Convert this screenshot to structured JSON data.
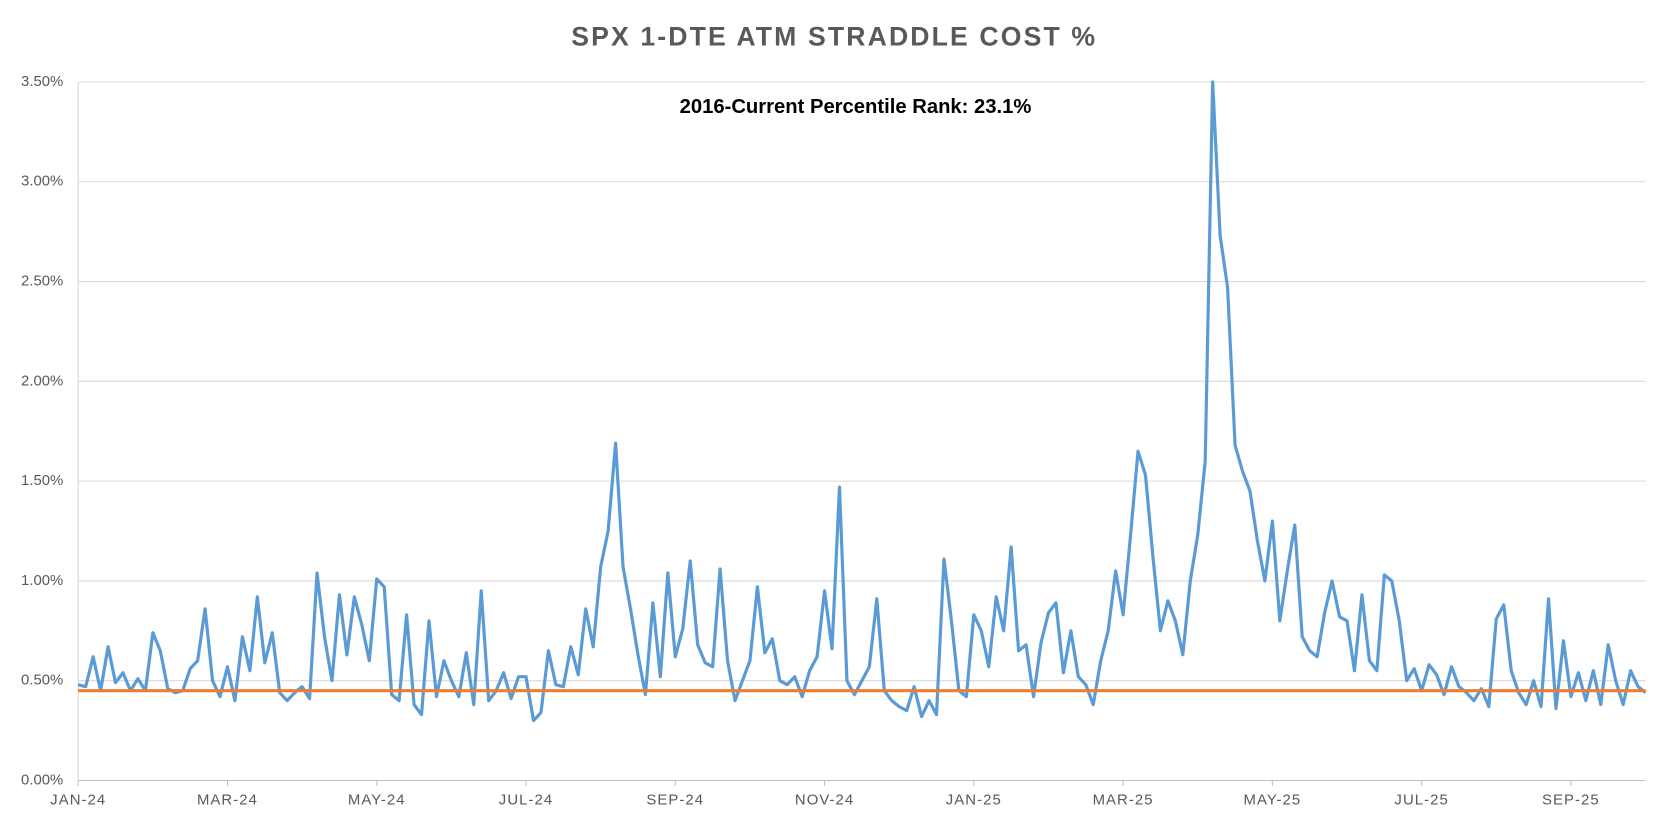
{
  "chart_data": {
    "type": "line",
    "title": "SPX 1-DTE ATM STRADDLE COST %",
    "annotation": "2016-Current Percentile Rank: 23.1%",
    "categories": [
      "JAN-24",
      null,
      null,
      null,
      null,
      null,
      null,
      null,
      null,
      null,
      null,
      null,
      null,
      null,
      null,
      null,
      null,
      null,
      null,
      null,
      "MAR-24",
      null,
      null,
      null,
      null,
      null,
      null,
      null,
      null,
      null,
      null,
      null,
      null,
      null,
      null,
      null,
      null,
      null,
      null,
      null,
      "MAY-24",
      null,
      null,
      null,
      null,
      null,
      null,
      null,
      null,
      null,
      null,
      null,
      null,
      null,
      null,
      null,
      null,
      null,
      null,
      null,
      "JUL-24",
      null,
      null,
      null,
      null,
      null,
      null,
      null,
      null,
      null,
      null,
      null,
      null,
      null,
      null,
      null,
      null,
      null,
      null,
      null,
      "SEP-24",
      null,
      null,
      null,
      null,
      null,
      null,
      null,
      null,
      null,
      null,
      null,
      null,
      null,
      null,
      null,
      null,
      null,
      null,
      null,
      "NOV-24",
      null,
      null,
      null,
      null,
      null,
      null,
      null,
      null,
      null,
      null,
      null,
      null,
      null,
      null,
      null,
      null,
      null,
      null,
      null,
      "JAN-25",
      null,
      null,
      null,
      null,
      null,
      null,
      null,
      null,
      null,
      null,
      null,
      null,
      null,
      null,
      null,
      null,
      null,
      null,
      null,
      "MAR-25",
      null,
      null,
      null,
      null,
      null,
      null,
      null,
      null,
      null,
      null,
      null,
      null,
      null,
      null,
      null,
      null,
      null,
      null,
      null,
      "MAY-25",
      null,
      null,
      null,
      null,
      null,
      null,
      null,
      null,
      null,
      null,
      null,
      null,
      null,
      null,
      null,
      null,
      null,
      null,
      null,
      "JUL-25",
      null,
      null,
      null,
      null,
      null,
      null,
      null,
      null,
      null,
      null,
      null,
      null,
      null,
      null,
      null,
      null,
      null,
      null,
      null,
      "SEP-25",
      null,
      null,
      null,
      null,
      null,
      null,
      null,
      null,
      null,
      null
    ],
    "series": [
      {
        "color": "#5b9bd5",
        "values": [
          0.48,
          0.47,
          0.62,
          0.45,
          0.67,
          0.49,
          0.54,
          0.45,
          0.51,
          0.45,
          0.74,
          0.65,
          0.46,
          0.44,
          0.45,
          0.56,
          0.6,
          0.86,
          0.5,
          0.42,
          0.57,
          0.4,
          0.72,
          0.55,
          0.92,
          0.59,
          0.74,
          0.44,
          0.4,
          0.44,
          0.47,
          0.41,
          1.04,
          0.72,
          0.5,
          0.93,
          0.63,
          0.92,
          0.78,
          0.6,
          1.01,
          0.97,
          0.43,
          0.4,
          0.83,
          0.38,
          0.33,
          0.8,
          0.42,
          0.6,
          0.5,
          0.42,
          0.64,
          0.38,
          0.95,
          0.4,
          0.45,
          0.54,
          0.41,
          0.52,
          0.52,
          0.3,
          0.34,
          0.65,
          0.48,
          0.47,
          0.67,
          0.53,
          0.86,
          0.67,
          1.07,
          1.25,
          1.69,
          1.07,
          0.86,
          0.63,
          0.43,
          0.89,
          0.52,
          1.04,
          0.62,
          0.76,
          1.1,
          0.68,
          0.59,
          0.57,
          1.06,
          0.6,
          0.4,
          0.5,
          0.6,
          0.97,
          0.64,
          0.71,
          0.5,
          0.48,
          0.52,
          0.42,
          0.55,
          0.62,
          0.95,
          0.66,
          1.47,
          0.5,
          0.43,
          0.5,
          0.57,
          0.91,
          0.45,
          0.4,
          0.37,
          0.35,
          0.47,
          0.32,
          0.4,
          0.33,
          1.11,
          0.8,
          0.45,
          0.42,
          0.83,
          0.75,
          0.57,
          0.92,
          0.75,
          1.17,
          0.65,
          0.68,
          0.42,
          0.69,
          0.84,
          0.89,
          0.54,
          0.75,
          0.52,
          0.48,
          0.38,
          0.6,
          0.75,
          1.05,
          0.83,
          1.23,
          1.65,
          1.53,
          1.12,
          0.75,
          0.9,
          0.8,
          0.63,
          1.0,
          1.23,
          1.6,
          3.5,
          2.73,
          2.47,
          1.68,
          1.55,
          1.45,
          1.2,
          1.0,
          1.3,
          0.8,
          1.05,
          1.28,
          0.72,
          0.65,
          0.62,
          0.84,
          1.0,
          0.82,
          0.8,
          0.55,
          0.93,
          0.6,
          0.55,
          1.03,
          1.0,
          0.8,
          0.5,
          0.56,
          0.45,
          0.58,
          0.53,
          0.43,
          0.57,
          0.47,
          0.44,
          0.4,
          0.46,
          0.37,
          0.81,
          0.88,
          0.55,
          0.44,
          0.38,
          0.5,
          0.37,
          0.91,
          0.36,
          0.7,
          0.42,
          0.54,
          0.4,
          0.55,
          0.38,
          0.68,
          0.5,
          0.38,
          0.55,
          0.47,
          0.44
        ]
      }
    ],
    "hline": {
      "value": 0.45,
      "color": "#ed7d31"
    },
    "ylim": [
      0,
      3.5
    ],
    "yticks": [
      {
        "value": 0,
        "label": "0.00%"
      },
      {
        "value": 0.5,
        "label": "0.50%"
      },
      {
        "value": 1,
        "label": "1.00%"
      },
      {
        "value": 1.5,
        "label": "1.50%"
      },
      {
        "value": 2,
        "label": "2.00%"
      },
      {
        "value": 2.5,
        "label": "2.50%"
      },
      {
        "value": 3,
        "label": "3.00%"
      },
      {
        "value": 3.5,
        "label": "3.50%"
      }
    ],
    "grid": true
  }
}
